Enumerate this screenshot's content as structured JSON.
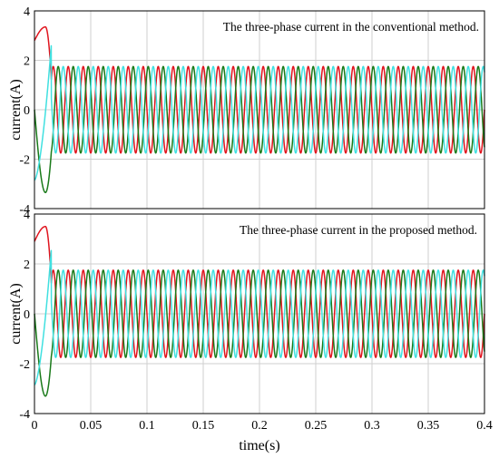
{
  "chart_data": [
    {
      "type": "line",
      "title": "",
      "annotation": "The three-phase current in the conventional method.",
      "xlabel": "",
      "ylabel": "current(A)",
      "xlim": [
        0,
        0.4
      ],
      "ylim": [
        -4,
        4
      ],
      "yticks": [
        "-4",
        "-2",
        "0",
        "2",
        "4"
      ],
      "xticks": [],
      "grid": true,
      "frequency_hz": 75,
      "steady_amplitude_A": 1.75,
      "transient": {
        "end_s": 0.015,
        "start_values_A": [
          2.8,
          0.0,
          -2.85
        ],
        "peak_values_A": [
          3.35,
          -3.35,
          2.65
        ]
      },
      "series": [
        {
          "color": "#e0141e",
          "phase_deg": 0
        },
        {
          "color": "#1a7a1a",
          "phase_deg": -120
        },
        {
          "color": "#40e0e0",
          "phase_deg": 120
        }
      ]
    },
    {
      "type": "line",
      "title": "",
      "annotation": "The three-phase current in the proposed method.",
      "xlabel": "time(s)",
      "ylabel": "current(A)",
      "xlim": [
        0,
        0.4
      ],
      "ylim": [
        -4,
        4
      ],
      "yticks": [
        "-4",
        "-2",
        "0",
        "2",
        "4"
      ],
      "xticks": [
        "0",
        "0.05",
        "0.1",
        "0.15",
        "0.2",
        "0.25",
        "0.3",
        "0.35",
        "0.4"
      ],
      "grid": true,
      "frequency_hz": 75,
      "steady_amplitude_A": 1.75,
      "transient": {
        "end_s": 0.015,
        "start_values_A": [
          2.9,
          0.0,
          -2.85
        ],
        "peak_values_A": [
          3.5,
          -3.3,
          2.6
        ]
      },
      "series": [
        {
          "color": "#e0141e",
          "phase_deg": 0
        },
        {
          "color": "#1a7a1a",
          "phase_deg": -120
        },
        {
          "color": "#40e0e0",
          "phase_deg": 120
        }
      ]
    }
  ]
}
